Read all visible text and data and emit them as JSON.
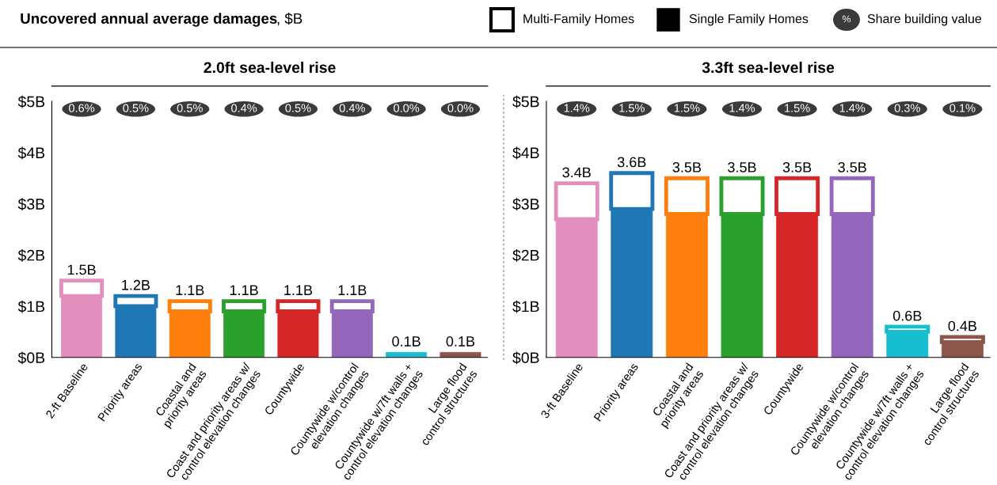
{
  "chart_data": [
    {
      "type": "bar",
      "title": "2.0ft sea-level rise",
      "stacked": true,
      "annotations": [
        "Uncovered annual average damages",
        ", $B",
        "Multi-Family Homes",
        "Single Family Homes",
        "%",
        "Share building value",
        "0.6%",
        "0.5%",
        "0.5%",
        "0.4%",
        "0.5%",
        "0.4%",
        "0.0%",
        "0.0%"
      ],
      "categories": [
        "2-ft Baseline",
        "Priority areas",
        "Coastal and\npriority areas",
        "Coast and priority areas w/\ncontrol elevation changes",
        "Countywide",
        "Countywide w/control\nelevation changes",
        "Countywide w/7ft walls +\ncontrol elevation changes",
        "Large flood\ncontrol structures"
      ],
      "series": [
        {
          "colors": [
            "#e38fbd",
            "#1f77b4",
            "#ff7f0e",
            "#2ca02c",
            "#d62728",
            "#9467bd",
            "#17becf",
            "#8c564b"
          ],
          "values": [
            1.2,
            1.0,
            0.9,
            0.9,
            0.9,
            0.9,
            0.1,
            0.1
          ]
        },
        {
          "color": "#ffffff",
          "values": [
            0.3,
            0.2,
            0.2,
            0.2,
            0.2,
            0.2,
            0.0,
            0.0
          ]
        }
      ],
      "totals": [
        "1.5B",
        "1.2B",
        "1.1B",
        "1.1B",
        "1.1B",
        "1.1B",
        "0.1B",
        "0.1B"
      ],
      "ylim": [
        0,
        5
      ],
      "yticks": [
        {
          "value": 0,
          "label": "$0B"
        },
        {
          "value": 1,
          "label": "$1B"
        },
        {
          "value": 2,
          "label": "$2B"
        },
        {
          "value": 3,
          "label": "$3B"
        },
        {
          "value": 4,
          "label": "$4B"
        },
        {
          "value": 5,
          "label": "$5B"
        }
      ],
      "grid": false
    },
    {
      "type": "bar",
      "title": "3.3ft sea-level rise",
      "stacked": true,
      "annotations": [
        "1.4%",
        "1.5%",
        "1.5%",
        "1.4%",
        "1.5%",
        "1.4%",
        "0.3%",
        "0.1%"
      ],
      "categories": [
        "3-ft Baseline",
        "Priority areas",
        "Coastal and\npriority areas",
        "Coast and priority areas w/\ncontrol elevation changes",
        "Countywide",
        "Countywide w/control\nelevation changes",
        "Countywide w/7ft walls +\ncontrol elevation changes",
        "Large flood\ncontrol structures"
      ],
      "series": [
        {
          "colors": [
            "#e38fbd",
            "#1f77b4",
            "#ff7f0e",
            "#2ca02c",
            "#d62728",
            "#9467bd",
            "#17becf",
            "#8c564b"
          ],
          "values": [
            2.7,
            2.9,
            2.8,
            2.8,
            2.8,
            2.8,
            0.5,
            0.3
          ]
        },
        {
          "color": "#ffffff",
          "values": [
            0.7,
            0.7,
            0.7,
            0.7,
            0.7,
            0.7,
            0.1,
            0.1
          ]
        }
      ],
      "totals": [
        "3.4B",
        "3.6B",
        "3.5B",
        "3.5B",
        "3.5B",
        "3.5B",
        "0.6B",
        "0.4B"
      ],
      "ylim": [
        0,
        5
      ],
      "yticks": [
        {
          "value": 0,
          "label": "$0B"
        },
        {
          "value": 1,
          "label": "$1B"
        },
        {
          "value": 2,
          "label": "$2B"
        },
        {
          "value": 3,
          "label": "$3B"
        },
        {
          "value": 4,
          "label": "$4B"
        },
        {
          "value": 5,
          "label": "$5B"
        }
      ],
      "grid": false
    }
  ]
}
